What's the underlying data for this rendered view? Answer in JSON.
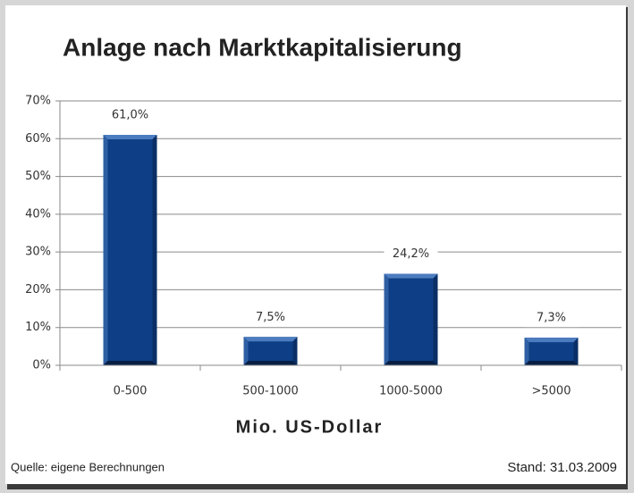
{
  "chart_data": {
    "type": "bar",
    "title": "Anlage nach Marktkapitalisierung",
    "categories": [
      "0-500",
      "500-1000",
      "1000-5000",
      ">5000"
    ],
    "values": [
      61.0,
      7.5,
      24.2,
      7.3
    ],
    "value_labels": [
      "61,0%",
      "7,5%",
      "24,2%",
      "7,3%"
    ],
    "color": "#0e3f86",
    "ylim": [
      0,
      70
    ],
    "yticks": [
      {
        "value": 0,
        "label": "0%"
      },
      {
        "value": 10,
        "label": "10%"
      },
      {
        "value": 20,
        "label": "20%"
      },
      {
        "value": 30,
        "label": "30%"
      },
      {
        "value": 40,
        "label": "40%"
      },
      {
        "value": 50,
        "label": "50%"
      },
      {
        "value": 60,
        "label": "60%"
      },
      {
        "value": 70,
        "label": "70%"
      }
    ],
    "grid": true,
    "x_label": "Mio. US-Dollar",
    "source": "Quelle: eigene Berechnungen",
    "date": "Stand: 31.03.2009"
  }
}
